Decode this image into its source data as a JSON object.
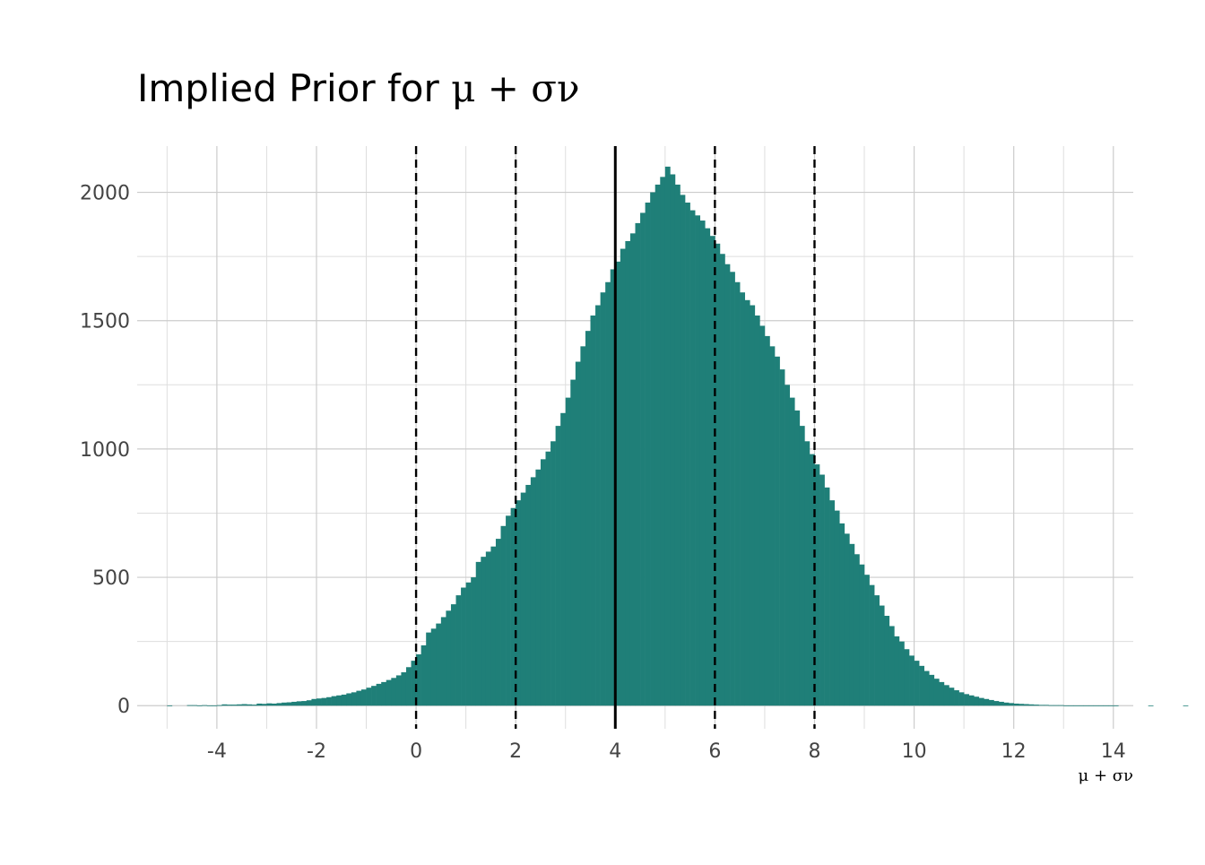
{
  "chart_data": {
    "type": "bar",
    "title": "Implied Prior for",
    "title_math": "μ + σν",
    "xlabel": "μ + σν",
    "ylabel": "",
    "xlim": [
      -5.6,
      14.4
    ],
    "ylim": [
      -90,
      2180
    ],
    "x_ticks": [
      "-4",
      "-2",
      "0",
      "2",
      "4",
      "6",
      "8",
      "10",
      "12",
      "14"
    ],
    "y_ticks": [
      "0",
      "500",
      "1000",
      "1500",
      "2000"
    ],
    "grid": true,
    "bar_color": "#1f7f78",
    "bin_start": -5.0,
    "bin_width": 0.1,
    "counts": [
      1,
      0,
      0,
      0,
      2,
      2,
      1,
      2,
      1,
      1,
      2,
      5,
      4,
      4,
      5,
      6,
      5,
      4,
      8,
      7,
      9,
      8,
      10,
      12,
      13,
      15,
      17,
      18,
      21,
      26,
      28,
      30,
      33,
      37,
      40,
      43,
      48,
      52,
      58,
      63,
      70,
      77,
      85,
      92,
      100,
      108,
      118,
      130,
      150,
      175,
      200,
      235,
      285,
      300,
      320,
      345,
      370,
      395,
      430,
      460,
      480,
      500,
      560,
      580,
      600,
      620,
      650,
      700,
      740,
      770,
      800,
      830,
      860,
      890,
      920,
      960,
      990,
      1030,
      1090,
      1140,
      1200,
      1270,
      1340,
      1400,
      1460,
      1520,
      1560,
      1610,
      1650,
      1700,
      1730,
      1780,
      1810,
      1840,
      1880,
      1920,
      1960,
      2000,
      2030,
      2060,
      2100,
      2070,
      2030,
      1990,
      1960,
      1930,
      1910,
      1890,
      1860,
      1830,
      1800,
      1760,
      1720,
      1690,
      1650,
      1610,
      1580,
      1560,
      1520,
      1480,
      1440,
      1400,
      1360,
      1310,
      1250,
      1200,
      1150,
      1090,
      1030,
      980,
      940,
      900,
      850,
      800,
      760,
      710,
      670,
      630,
      590,
      550,
      510,
      470,
      430,
      390,
      350,
      310,
      270,
      250,
      220,
      195,
      175,
      155,
      135,
      120,
      105,
      92,
      80,
      70,
      60,
      52,
      45,
      40,
      35,
      30,
      26,
      22,
      18,
      15,
      12,
      10,
      8,
      7,
      6,
      5,
      4,
      3,
      3,
      2,
      2,
      2,
      1,
      1,
      1,
      1,
      1,
      1,
      1,
      1,
      1,
      1,
      1,
      0,
      0,
      0,
      0,
      0,
      0,
      1,
      0,
      0,
      0,
      0,
      0,
      0,
      1,
      0,
      0
    ],
    "reference_lines": [
      {
        "x": 0,
        "style": "dashed"
      },
      {
        "x": 2,
        "style": "dashed"
      },
      {
        "x": 4,
        "style": "solid"
      },
      {
        "x": 6,
        "style": "dashed"
      },
      {
        "x": 8,
        "style": "dashed"
      }
    ]
  }
}
